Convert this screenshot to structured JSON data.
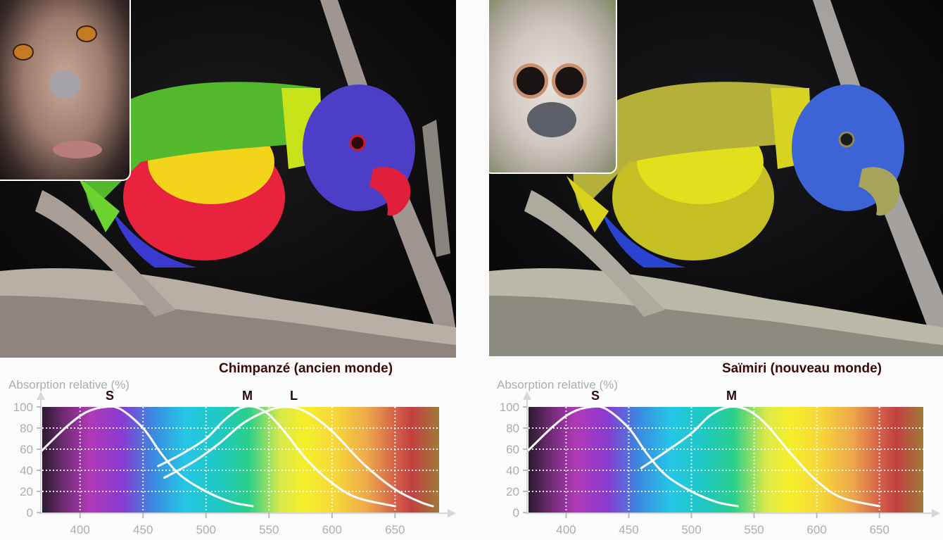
{
  "figure": {
    "left_panel": {
      "title": "Chimpanzé (ancien monde)",
      "photo_description": "Rainbow lorikeet on branch in full color (trichromatic vision), inset of chimpanzee face",
      "inset_animal": "chimpanzee",
      "parrot_colors": {
        "head": "#4a3fc4",
        "breast": "#f2213f",
        "belly_highlight": "#f7e11c",
        "wing": "#5fbf2a",
        "beak": "#e0203b"
      }
    },
    "right_panel": {
      "title": "Saïmiri (nouveau monde)",
      "photo_description": "Same lorikeet rendered as seen with dichromatic vision (yellows and blues), inset of squirrel monkey face",
      "inset_animal": "squirrel-monkey",
      "parrot_colors": {
        "head": "#3d63d6",
        "body": "#c8c423",
        "belly_highlight": "#e3e21a",
        "beak": "#a6a35a"
      }
    }
  },
  "chart_data": [
    {
      "type": "line",
      "title": "Chimpanzé (ancien monde)",
      "ylabel": "Absorption relative (%)",
      "xlabel": "",
      "xlim": [
        370,
        685
      ],
      "ylim": [
        0,
        100
      ],
      "x_ticks": [
        400,
        450,
        500,
        550,
        600,
        650
      ],
      "y_ticks": [
        0,
        20,
        40,
        60,
        80,
        100
      ],
      "grid": true,
      "background": "visible light spectrum gradient (violet to red)",
      "series": [
        {
          "name": "S",
          "peak_nm": 420,
          "points": [
            [
              370,
              59
            ],
            [
              390,
              82
            ],
            [
              405,
              95
            ],
            [
              420,
              100
            ],
            [
              432,
              98
            ],
            [
              450,
              80
            ],
            [
              465,
              55
            ],
            [
              480,
              35
            ],
            [
              500,
              20
            ],
            [
              520,
              10
            ],
            [
              537,
              6
            ]
          ]
        },
        {
          "name": "M",
          "peak_nm": 530,
          "points": [
            [
              462,
              44
            ],
            [
              480,
              55
            ],
            [
              500,
              70
            ],
            [
              515,
              88
            ],
            [
              530,
              100
            ],
            [
              545,
              97
            ],
            [
              560,
              80
            ],
            [
              580,
              50
            ],
            [
              600,
              28
            ],
            [
              620,
              14
            ],
            [
              650,
              6
            ]
          ]
        },
        {
          "name": "L",
          "peak_nm": 565,
          "points": [
            [
              467,
              33
            ],
            [
              490,
              48
            ],
            [
              510,
              65
            ],
            [
              530,
              85
            ],
            [
              550,
              97
            ],
            [
              565,
              100
            ],
            [
              580,
              95
            ],
            [
              600,
              77
            ],
            [
              625,
              46
            ],
            [
              650,
              22
            ],
            [
              670,
              10
            ],
            [
              680,
              6
            ]
          ]
        }
      ]
    },
    {
      "type": "line",
      "title": "Saïmiri (nouveau monde)",
      "ylabel": "Absorption relative (%)",
      "xlabel": "",
      "xlim": [
        370,
        685
      ],
      "ylim": [
        0,
        100
      ],
      "x_ticks": [
        400,
        450,
        500,
        550,
        600,
        650
      ],
      "y_ticks": [
        0,
        20,
        40,
        60,
        80,
        100
      ],
      "grid": true,
      "background": "visible light spectrum gradient (violet to red)",
      "series": [
        {
          "name": "S",
          "peak_nm": 420,
          "points": [
            [
              370,
              59
            ],
            [
              390,
              82
            ],
            [
              405,
              95
            ],
            [
              420,
              100
            ],
            [
              432,
              98
            ],
            [
              450,
              80
            ],
            [
              465,
              55
            ],
            [
              480,
              35
            ],
            [
              500,
              20
            ],
            [
              520,
              10
            ],
            [
              537,
              6
            ]
          ]
        },
        {
          "name": "M",
          "peak_nm": 530,
          "points": [
            [
              460,
              42
            ],
            [
              480,
              58
            ],
            [
              500,
              75
            ],
            [
              515,
              92
            ],
            [
              530,
              100
            ],
            [
              545,
              97
            ],
            [
              560,
              83
            ],
            [
              580,
              55
            ],
            [
              600,
              30
            ],
            [
              620,
              14
            ],
            [
              650,
              6
            ]
          ]
        }
      ]
    }
  ],
  "labels": {
    "y_axis": "Absorption relative (%)",
    "x_ticks": [
      "400",
      "450",
      "500",
      "550",
      "600",
      "650"
    ],
    "y_ticks": [
      "100",
      "80",
      "60",
      "40",
      "20",
      "0"
    ],
    "left_curves": [
      "S",
      "M",
      "L"
    ],
    "right_curves": [
      "S",
      "M"
    ]
  },
  "colors": {
    "axis_text": "#a9adb4",
    "title_text": "#3a0a0a",
    "curve": "#ffffff",
    "grid": "#ffffff"
  }
}
